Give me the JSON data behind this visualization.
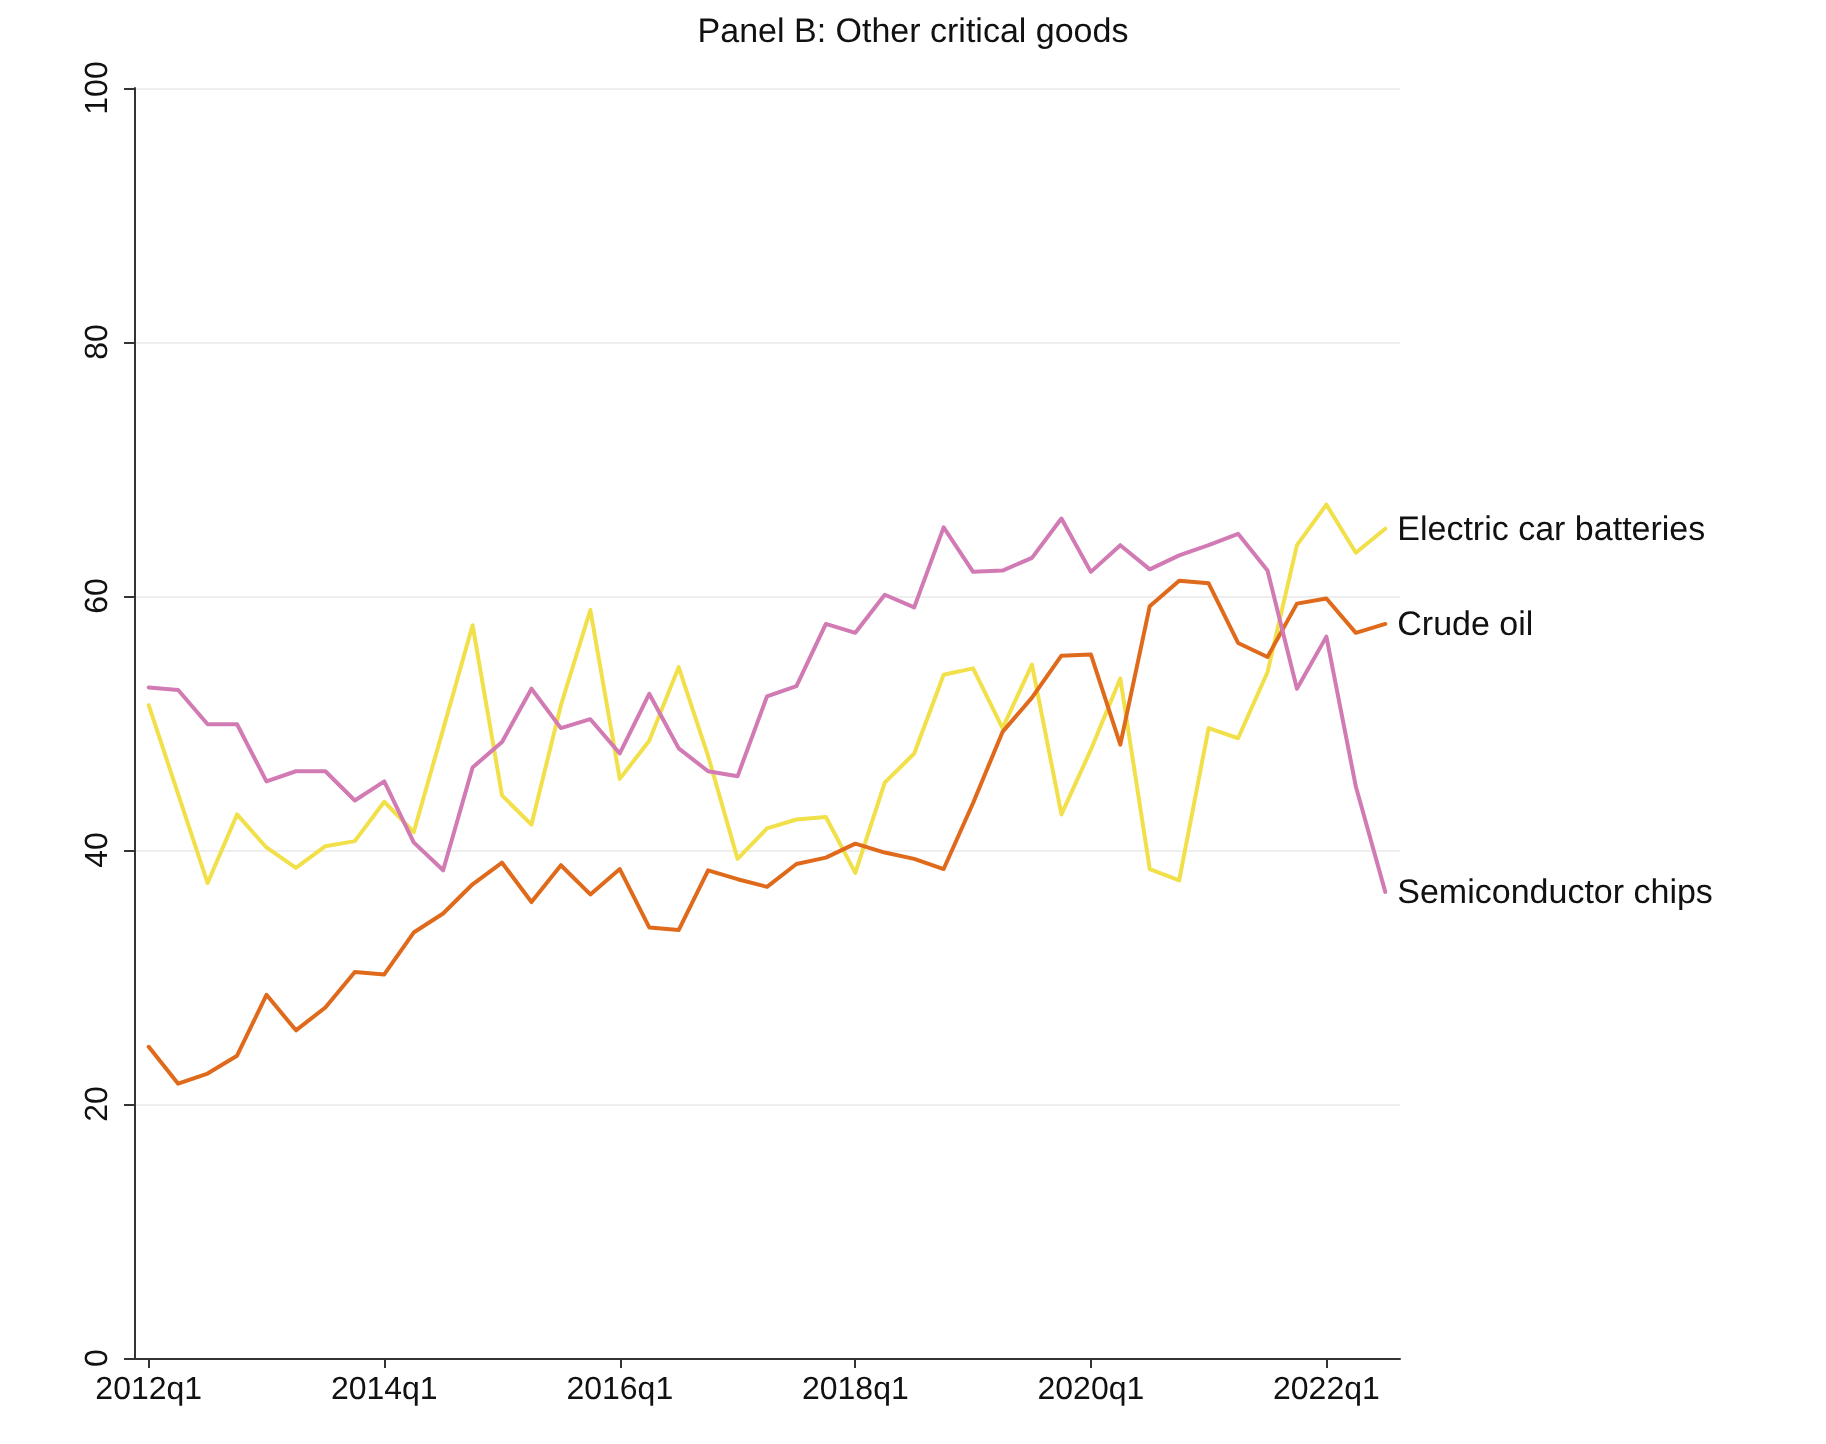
{
  "chart_data": {
    "type": "line",
    "title": "Panel B: Other critical goods",
    "categories": [
      "2012q1",
      null,
      null,
      null,
      null,
      null,
      null,
      null,
      "2014q1",
      null,
      null,
      null,
      null,
      null,
      null,
      null,
      "2016q1",
      null,
      null,
      null,
      null,
      null,
      null,
      null,
      "2018q1",
      null,
      null,
      null,
      null,
      null,
      null,
      null,
      "2020q1",
      null,
      null,
      null,
      null,
      null,
      null,
      null,
      "2022q1",
      null,
      null
    ],
    "series": [
      {
        "name": "Electric car batteries",
        "color": "#f1e04a",
        "values": [
          51.4,
          44.4,
          37.4,
          42.8,
          40.2,
          38.6,
          40.3,
          40.7,
          43.8,
          41.4,
          49.5,
          57.7,
          44.3,
          42,
          51.4,
          58.9,
          45.6,
          48.6,
          54.4,
          47.4,
          39.3,
          41.7,
          42.4,
          42.6,
          38.2,
          45.3,
          47.6,
          53.8,
          54.3,
          49.6,
          54.6,
          42.8,
          47.9,
          53.5,
          38.5,
          37.6,
          49.6,
          48.8,
          54,
          64,
          67.2,
          63.4,
          65.3
        ]
      },
      {
        "name": "Crude oil",
        "color": "#e06a1b",
        "values": [
          24.5,
          21.6,
          22.4,
          23.8,
          28.6,
          25.8,
          27.6,
          30.4,
          30.2,
          33.5,
          35,
          37.3,
          39,
          35.9,
          38.8,
          36.5,
          38.5,
          33.9,
          33.7,
          38.4,
          37.7,
          37.1,
          38.9,
          39.4,
          40.5,
          39.8,
          39.3,
          38.5,
          43.7,
          49.3,
          52,
          55.3,
          55.4,
          48.3,
          59.2,
          61.2,
          61,
          56.3,
          55.2,
          59.4,
          59.8,
          57.1,
          57.8
        ]
      },
      {
        "name": "Semiconductor chips",
        "color": "#d17ab3",
        "values": [
          52.8,
          52.6,
          49.9,
          49.9,
          45.4,
          46.2,
          46.2,
          43.9,
          45.4,
          40.6,
          38.4,
          46.5,
          48.5,
          52.7,
          49.6,
          50.3,
          47.6,
          52.3,
          48,
          46.2,
          45.8,
          52.1,
          52.9,
          57.8,
          57.1,
          60.1,
          59.1,
          65.4,
          61.9,
          62,
          63,
          66.1,
          61.9,
          64,
          62.1,
          63.2,
          64,
          64.9,
          62,
          52.7,
          56.8,
          45,
          36.7
        ]
      }
    ],
    "ylim": [
      0,
      100
    ],
    "yticks": [
      0,
      20,
      40,
      60,
      80,
      100
    ],
    "grid": "y",
    "legend": false,
    "marker": "none",
    "line_style": "solid"
  }
}
